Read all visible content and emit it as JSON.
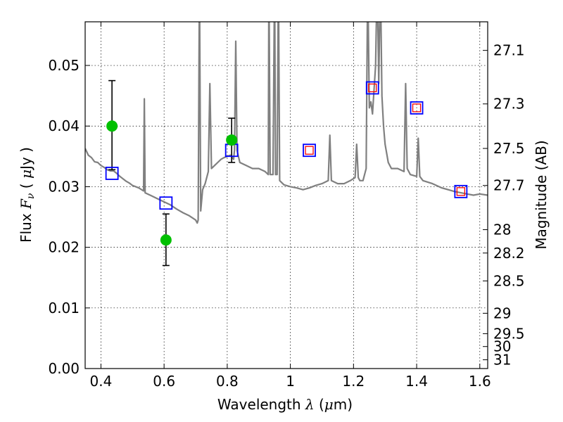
{
  "chart_data": {
    "type": "scatter",
    "xlabel_parts": [
      "Wavelength  ",
      "λ",
      " (",
      "μ",
      "m)"
    ],
    "ylabel_parts": [
      "Flux  ",
      "F",
      "ν",
      "  ( ",
      "μ",
      "Jy )"
    ],
    "y2label": "Magnitude (AB)",
    "xlim": [
      0.35,
      1.625
    ],
    "ylim": [
      0.0,
      0.0572
    ],
    "grid": true,
    "x_ticks": [
      0.4,
      0.6,
      0.8,
      1.0,
      1.2,
      1.4,
      1.6
    ],
    "x_tick_labels": [
      "0.4",
      "0.6",
      "0.8",
      "1",
      "1.2",
      "1.4",
      "1.6"
    ],
    "y_ticks": [
      0.0,
      0.01,
      0.02,
      0.03,
      0.04,
      0.05
    ],
    "y_tick_labels": [
      "0.00",
      "0.01",
      "0.02",
      "0.03",
      "0.04",
      "0.05"
    ],
    "y2_ticks": [
      27.1,
      27.3,
      27.5,
      27.7,
      28,
      28.2,
      28.5,
      29,
      29.5,
      30,
      31
    ],
    "y2_tick_labels": [
      "27.1",
      "27.3",
      "27.5",
      "27.7",
      "28",
      "28.2",
      "28.5",
      "29",
      "29.5",
      "30",
      "31"
    ],
    "colors": {
      "model": "#808080",
      "observed": "#00c000",
      "errorbar": "#000000",
      "model_band_outer": "#0000ff",
      "model_band_inner": "#ff0000"
    },
    "model_spectrum": [
      [
        0.35,
        0.0363
      ],
      [
        0.36,
        0.0352
      ],
      [
        0.37,
        0.0348
      ],
      [
        0.38,
        0.0341
      ],
      [
        0.39,
        0.034
      ],
      [
        0.4,
        0.0335
      ],
      [
        0.41,
        0.0332
      ],
      [
        0.42,
        0.0328
      ],
      [
        0.43,
        0.0326
      ],
      [
        0.44,
        0.0326
      ],
      [
        0.45,
        0.0322
      ],
      [
        0.46,
        0.0317
      ],
      [
        0.47,
        0.0313
      ],
      [
        0.48,
        0.0309
      ],
      [
        0.49,
        0.0306
      ],
      [
        0.5,
        0.0302
      ],
      [
        0.52,
        0.0298
      ],
      [
        0.535,
        0.0293
      ],
      [
        0.5375,
        0.0445
      ],
      [
        0.54,
        0.029
      ],
      [
        0.56,
        0.0285
      ],
      [
        0.58,
        0.028
      ],
      [
        0.6,
        0.0275
      ],
      [
        0.62,
        0.027
      ],
      [
        0.64,
        0.0263
      ],
      [
        0.66,
        0.0257
      ],
      [
        0.68,
        0.0252
      ],
      [
        0.7,
        0.0245
      ],
      [
        0.705,
        0.024
      ],
      [
        0.708,
        0.0245
      ],
      [
        0.712,
        0.065
      ],
      [
        0.716,
        0.026
      ],
      [
        0.722,
        0.0295
      ],
      [
        0.73,
        0.0305
      ],
      [
        0.74,
        0.0325
      ],
      [
        0.745,
        0.047
      ],
      [
        0.75,
        0.033
      ],
      [
        0.76,
        0.0335
      ],
      [
        0.77,
        0.034
      ],
      [
        0.78,
        0.0345
      ],
      [
        0.79,
        0.0348
      ],
      [
        0.8,
        0.035
      ],
      [
        0.81,
        0.0352
      ],
      [
        0.82,
        0.0345
      ],
      [
        0.823,
        0.036
      ],
      [
        0.827,
        0.054
      ],
      [
        0.831,
        0.036
      ],
      [
        0.84,
        0.034
      ],
      [
        0.86,
        0.0335
      ],
      [
        0.88,
        0.033
      ],
      [
        0.9,
        0.033
      ],
      [
        0.92,
        0.0325
      ],
      [
        0.93,
        0.032
      ],
      [
        0.932,
        0.065
      ],
      [
        0.936,
        0.032
      ],
      [
        0.945,
        0.032
      ],
      [
        0.95,
        0.065
      ],
      [
        0.953,
        0.032
      ],
      [
        0.958,
        0.032
      ],
      [
        0.962,
        0.065
      ],
      [
        0.966,
        0.031
      ],
      [
        0.98,
        0.0303
      ],
      [
        1.0,
        0.03
      ],
      [
        1.02,
        0.0298
      ],
      [
        1.04,
        0.0295
      ],
      [
        1.06,
        0.0298
      ],
      [
        1.08,
        0.0302
      ],
      [
        1.1,
        0.0305
      ],
      [
        1.12,
        0.031
      ],
      [
        1.125,
        0.0385
      ],
      [
        1.13,
        0.031
      ],
      [
        1.15,
        0.0305
      ],
      [
        1.17,
        0.0305
      ],
      [
        1.19,
        0.031
      ],
      [
        1.205,
        0.0315
      ],
      [
        1.21,
        0.037
      ],
      [
        1.215,
        0.0315
      ],
      [
        1.22,
        0.031
      ],
      [
        1.23,
        0.031
      ],
      [
        1.24,
        0.033
      ],
      [
        1.245,
        0.065
      ],
      [
        1.25,
        0.043
      ],
      [
        1.255,
        0.044
      ],
      [
        1.26,
        0.042
      ],
      [
        1.265,
        0.046
      ],
      [
        1.27,
        0.05
      ],
      [
        1.275,
        0.065
      ],
      [
        1.28,
        0.047
      ],
      [
        1.285,
        0.065
      ],
      [
        1.29,
        0.045
      ],
      [
        1.295,
        0.04
      ],
      [
        1.3,
        0.037
      ],
      [
        1.31,
        0.034
      ],
      [
        1.32,
        0.033
      ],
      [
        1.34,
        0.033
      ],
      [
        1.36,
        0.0325
      ],
      [
        1.365,
        0.047
      ],
      [
        1.37,
        0.033
      ],
      [
        1.38,
        0.032
      ],
      [
        1.4,
        0.0317
      ],
      [
        1.405,
        0.038
      ],
      [
        1.41,
        0.0317
      ],
      [
        1.42,
        0.031
      ],
      [
        1.45,
        0.0305
      ],
      [
        1.48,
        0.0298
      ],
      [
        1.5,
        0.0295
      ],
      [
        1.52,
        0.0292
      ],
      [
        1.54,
        0.029
      ],
      [
        1.56,
        0.0288
      ],
      [
        1.58,
        0.0286
      ],
      [
        1.6,
        0.0288
      ],
      [
        1.625,
        0.0286
      ]
    ],
    "observed_points": [
      {
        "x": 0.435,
        "y": 0.04,
        "err_low": 0.0072,
        "err_high": 0.0075
      },
      {
        "x": 0.606,
        "y": 0.0212,
        "err_low": 0.0042,
        "err_high": 0.0043
      },
      {
        "x": 0.814,
        "y": 0.0377,
        "err_low": 0.0037,
        "err_high": 0.0036
      }
    ],
    "model_band_points": [
      {
        "x": 0.435,
        "y": 0.0322,
        "inner": false
      },
      {
        "x": 0.606,
        "y": 0.0273,
        "inner": false
      },
      {
        "x": 0.814,
        "y": 0.036,
        "inner": false
      },
      {
        "x": 1.06,
        "y": 0.036,
        "inner": true
      },
      {
        "x": 1.26,
        "y": 0.0463,
        "inner": true
      },
      {
        "x": 1.4,
        "y": 0.043,
        "inner": true
      },
      {
        "x": 1.54,
        "y": 0.0292,
        "inner": true
      }
    ]
  }
}
